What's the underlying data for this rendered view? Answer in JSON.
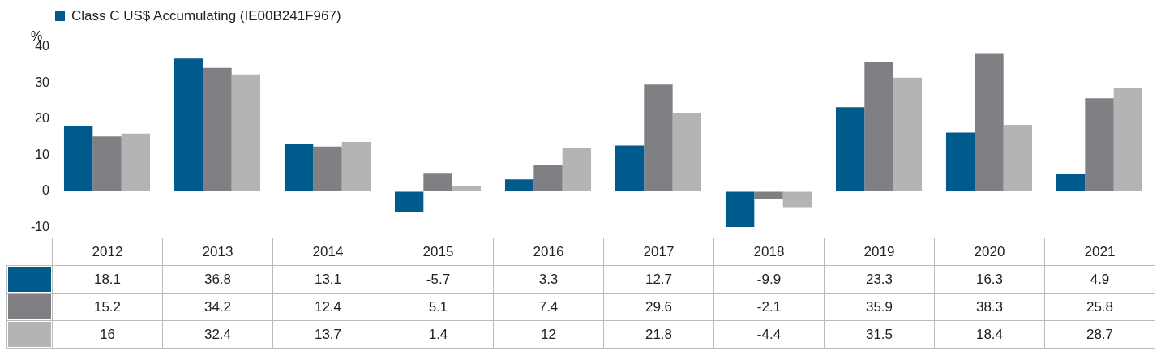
{
  "chart_data": {
    "type": "bar",
    "ylabel": "%",
    "categories": [
      "2012",
      "2013",
      "2014",
      "2015",
      "2016",
      "2017",
      "2018",
      "2019",
      "2020",
      "2021"
    ],
    "series": [
      {
        "name": "Class C US$ Accumulating (IE00B241F967)",
        "color": "#005a8b",
        "values": [
          18.1,
          36.8,
          13.1,
          -5.7,
          3.3,
          12.7,
          -9.9,
          23.3,
          16.3,
          4.9
        ]
      },
      {
        "color": "#808084",
        "values": [
          15.2,
          34.2,
          12.4,
          5.1,
          7.4,
          29.6,
          -2.1,
          35.9,
          38.3,
          25.8
        ]
      },
      {
        "color": "#b4b4b4",
        "values": [
          16,
          32.4,
          13.7,
          1.4,
          12,
          21.8,
          -4.4,
          31.5,
          18.4,
          28.7
        ]
      }
    ],
    "ylim": [
      -10,
      40
    ],
    "yticks": [
      -10,
      0,
      10,
      20,
      30,
      40
    ],
    "legend": "top left",
    "data_labels": true
  }
}
